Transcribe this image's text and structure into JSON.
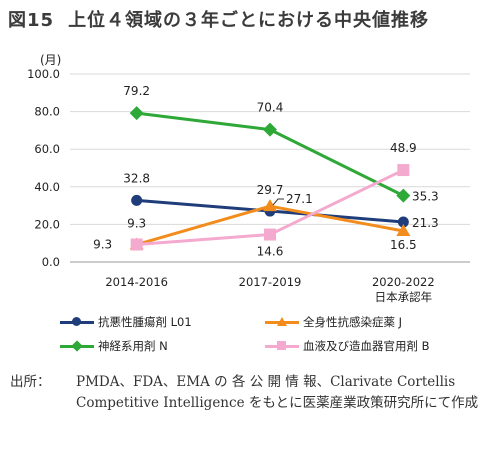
{
  "figure": {
    "number": "図15",
    "title": "上位４領域の３年ごとにおける中央値推移",
    "source_lead": "出所：",
    "source_text": "PMDA、FDA、EMA の 各 公 開 情 報、Clarivate Cortellis Competitive Intelligence をもとに医薬産業政策研究所にて作成"
  },
  "chart_data": {
    "type": "line",
    "ylabel": "(月)",
    "ylim": [
      0,
      100
    ],
    "yticks": [
      "0.0",
      "20.0",
      "40.0",
      "60.0",
      "80.0",
      "100.0"
    ],
    "categories": [
      "2014-2016",
      "2017-2019",
      "2020-2022"
    ],
    "category_sublabels": [
      "",
      "",
      "日本承認年"
    ],
    "series": [
      {
        "name": "抗悪性腫瘍剤 L01",
        "values": [
          32.8,
          27.1,
          21.3
        ],
        "labels": [
          "32.8",
          "27.1",
          "21.3"
        ],
        "color": "#1f3d7a",
        "marker": "circle"
      },
      {
        "name": "全身性抗感染症薬 J",
        "values": [
          9.3,
          29.7,
          16.5
        ],
        "labels": [
          "9.3",
          "29.7",
          "16.5"
        ],
        "color": "#f28c1c",
        "marker": "triangle"
      },
      {
        "name": "神経系用剤 N",
        "values": [
          79.2,
          70.4,
          35.3
        ],
        "labels": [
          "79.2",
          "70.4",
          "35.3"
        ],
        "color": "#2ea836",
        "marker": "diamond"
      },
      {
        "name": "血液及び造血器官用剤 B",
        "values": [
          9.3,
          14.6,
          48.9
        ],
        "labels": [
          "9.3",
          "14.6",
          "48.9"
        ],
        "color": "#f4a9cf",
        "marker": "square"
      }
    ]
  }
}
